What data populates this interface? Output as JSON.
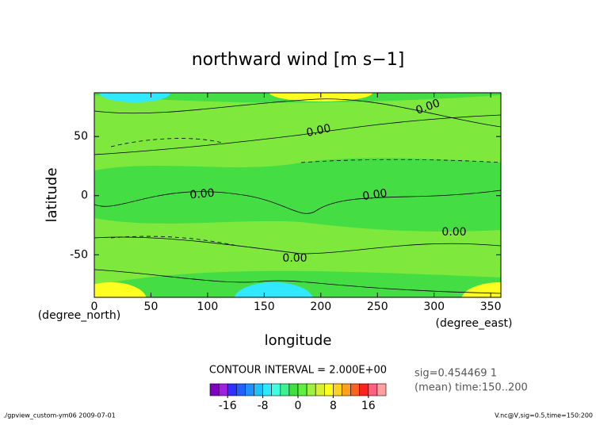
{
  "chart_data": {
    "type": "contour",
    "title": "northward wind [m s−1]",
    "xlabel": "longitude",
    "ylabel": "latitude",
    "xunit": "(degree_east)",
    "yunit": "(degree_north)",
    "xlim": [
      0,
      359
    ],
    "ylim": [
      -86,
      87
    ],
    "xticks": [
      0,
      50,
      100,
      150,
      200,
      250,
      300,
      350
    ],
    "yticks": [
      -50,
      0,
      50
    ],
    "contour_labels": [
      "0.00",
      "0.00",
      "0.00",
      "0.00",
      "0.00",
      "0.00"
    ],
    "contour_interval": "CONTOUR INTERVAL = 2.000E+00",
    "colorbar": {
      "levels": [
        -20,
        -18,
        -16,
        -14,
        -12,
        -10,
        -8,
        -6,
        -4,
        -2,
        0,
        2,
        4,
        6,
        8,
        10,
        12,
        14,
        16,
        18,
        20
      ],
      "colors": [
        "#8000c0",
        "#a020e0",
        "#3030ff",
        "#2060ff",
        "#2090ff",
        "#20c0ff",
        "#30e8ff",
        "#40ffe0",
        "#40f090",
        "#40e040",
        "#60f040",
        "#a0f040",
        "#d8f030",
        "#ffff20",
        "#ffd020",
        "#ffa020",
        "#ff6020",
        "#ff2020",
        "#ff6080",
        "#ffa0a0"
      ],
      "ticks": [
        -16,
        -8,
        0,
        8,
        16
      ]
    },
    "annotations": [
      "sig=0.454469 1",
      "(mean) time:150..200"
    ],
    "footer_left": "./gpview_custom-ym06  2009-07-01",
    "footer_right": "V.nc@V,sig=0.5,time=150:200"
  }
}
